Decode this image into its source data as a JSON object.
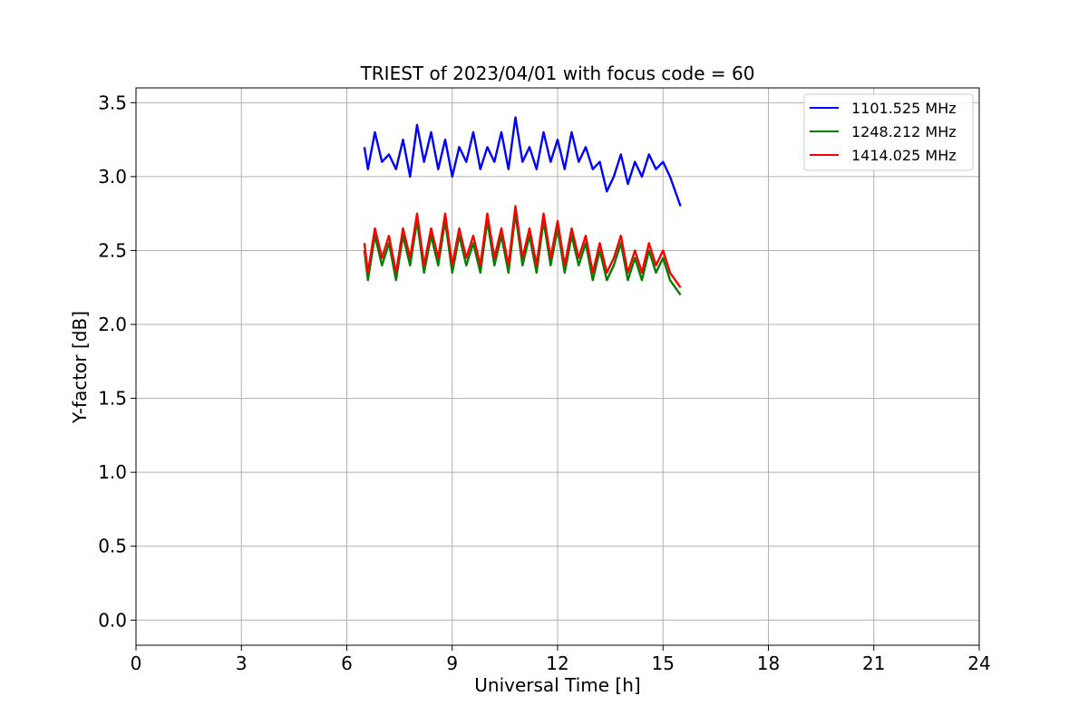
{
  "chart_data": {
    "type": "line",
    "title": "TRIEST of 2023/04/01 with focus code = 60",
    "xlabel": "Universal Time [h]",
    "ylabel": "Y-factor [dB]",
    "xlim": [
      0,
      24
    ],
    "ylim": [
      -0.17,
      3.6
    ],
    "xticks": [
      0,
      3,
      6,
      9,
      12,
      15,
      18,
      21,
      24
    ],
    "yticks": [
      0.0,
      0.5,
      1.0,
      1.5,
      2.0,
      2.5,
      3.0,
      3.5
    ],
    "xtick_labels": [
      "0",
      "3",
      "6",
      "9",
      "12",
      "15",
      "18",
      "21",
      "24"
    ],
    "ytick_labels": [
      "0.0",
      "0.5",
      "1.0",
      "1.5",
      "2.0",
      "2.5",
      "3.0",
      "3.5"
    ],
    "grid": true,
    "legend_position": "top-right",
    "series": [
      {
        "name": "1101.525 MHz",
        "color": "#0000ff",
        "x": [
          6.5,
          6.6,
          6.8,
          7.0,
          7.2,
          7.4,
          7.6,
          7.8,
          8.0,
          8.2,
          8.4,
          8.6,
          8.8,
          9.0,
          9.2,
          9.4,
          9.6,
          9.8,
          10.0,
          10.2,
          10.4,
          10.6,
          10.8,
          11.0,
          11.2,
          11.4,
          11.6,
          11.8,
          12.0,
          12.2,
          12.4,
          12.6,
          12.8,
          13.0,
          13.2,
          13.4,
          13.6,
          13.8,
          14.0,
          14.2,
          14.4,
          14.6,
          14.8,
          15.0,
          15.2,
          15.5
        ],
        "y": [
          3.2,
          3.05,
          3.3,
          3.1,
          3.15,
          3.05,
          3.25,
          3.0,
          3.35,
          3.1,
          3.3,
          3.05,
          3.25,
          3.0,
          3.2,
          3.1,
          3.3,
          3.05,
          3.2,
          3.1,
          3.3,
          3.05,
          3.4,
          3.1,
          3.2,
          3.05,
          3.3,
          3.1,
          3.25,
          3.05,
          3.3,
          3.1,
          3.2,
          3.05,
          3.1,
          2.9,
          3.0,
          3.15,
          2.95,
          3.1,
          3.0,
          3.15,
          3.05,
          3.1,
          3.0,
          2.8
        ]
      },
      {
        "name": "1248.212 MHz",
        "color": "#008000",
        "x": [
          6.5,
          6.6,
          6.8,
          7.0,
          7.2,
          7.4,
          7.6,
          7.8,
          8.0,
          8.2,
          8.4,
          8.6,
          8.8,
          9.0,
          9.2,
          9.4,
          9.6,
          9.8,
          10.0,
          10.2,
          10.4,
          10.6,
          10.8,
          11.0,
          11.2,
          11.4,
          11.6,
          11.8,
          12.0,
          12.2,
          12.4,
          12.6,
          12.8,
          13.0,
          13.2,
          13.4,
          13.6,
          13.8,
          14.0,
          14.2,
          14.4,
          14.6,
          14.8,
          15.0,
          15.2,
          15.5
        ],
        "y": [
          2.5,
          2.3,
          2.6,
          2.4,
          2.55,
          2.3,
          2.6,
          2.4,
          2.7,
          2.35,
          2.6,
          2.4,
          2.7,
          2.35,
          2.6,
          2.4,
          2.55,
          2.35,
          2.7,
          2.4,
          2.6,
          2.35,
          2.75,
          2.4,
          2.6,
          2.35,
          2.7,
          2.4,
          2.65,
          2.35,
          2.6,
          2.4,
          2.55,
          2.3,
          2.5,
          2.3,
          2.4,
          2.55,
          2.3,
          2.45,
          2.3,
          2.5,
          2.35,
          2.45,
          2.3,
          2.2
        ]
      },
      {
        "name": "1414.025 MHz",
        "color": "#ff0000",
        "x": [
          6.5,
          6.6,
          6.8,
          7.0,
          7.2,
          7.4,
          7.6,
          7.8,
          8.0,
          8.2,
          8.4,
          8.6,
          8.8,
          9.0,
          9.2,
          9.4,
          9.6,
          9.8,
          10.0,
          10.2,
          10.4,
          10.6,
          10.8,
          11.0,
          11.2,
          11.4,
          11.6,
          11.8,
          12.0,
          12.2,
          12.4,
          12.6,
          12.8,
          13.0,
          13.2,
          13.4,
          13.6,
          13.8,
          14.0,
          14.2,
          14.4,
          14.6,
          14.8,
          15.0,
          15.2,
          15.5
        ],
        "y": [
          2.55,
          2.35,
          2.65,
          2.45,
          2.6,
          2.35,
          2.65,
          2.45,
          2.75,
          2.4,
          2.65,
          2.45,
          2.75,
          2.4,
          2.65,
          2.45,
          2.6,
          2.4,
          2.75,
          2.45,
          2.65,
          2.4,
          2.8,
          2.45,
          2.65,
          2.4,
          2.75,
          2.45,
          2.7,
          2.4,
          2.65,
          2.45,
          2.6,
          2.35,
          2.55,
          2.35,
          2.45,
          2.6,
          2.35,
          2.5,
          2.35,
          2.55,
          2.4,
          2.5,
          2.35,
          2.25
        ]
      }
    ]
  }
}
